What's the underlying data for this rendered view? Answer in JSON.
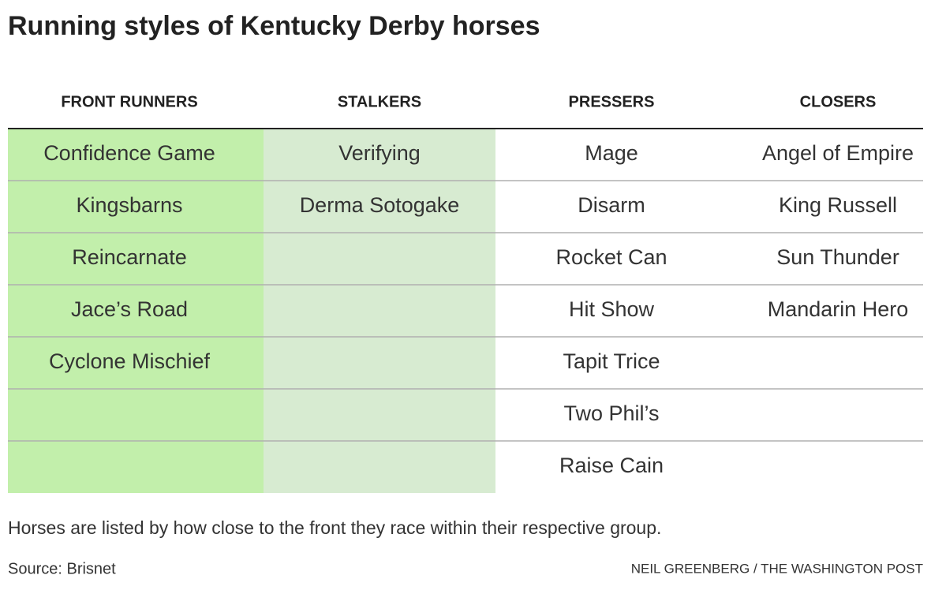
{
  "header": {
    "title": "Running styles of Kentucky Derby horses"
  },
  "table": {
    "columns": [
      "FRONT RUNNERS",
      "STALKERS",
      "PRESSERS",
      "CLOSERS"
    ],
    "rows": [
      [
        "Confidence Game",
        "Verifying",
        "Mage",
        "Angel of Empire"
      ],
      [
        "Kingsbarns",
        "Derma Sotogake",
        "Disarm",
        "King Russell"
      ],
      [
        "Reincarnate",
        null,
        "Rocket Can",
        "Sun Thunder"
      ],
      [
        "Jace’s Road",
        null,
        "Hit Show",
        "Mandarin Hero"
      ],
      [
        "Cyclone Mischief",
        null,
        "Tapit Trice",
        null
      ],
      [
        null,
        null,
        "Two Phil’s",
        null
      ],
      [
        null,
        null,
        "Raise Cain",
        null
      ]
    ]
  },
  "footer": {
    "note": "Horses are listed by how close to the front they race within their respective group.",
    "source": "Source: Brisnet",
    "credit": "NEIL GREENBERG / THE WASHINGTON POST"
  }
}
